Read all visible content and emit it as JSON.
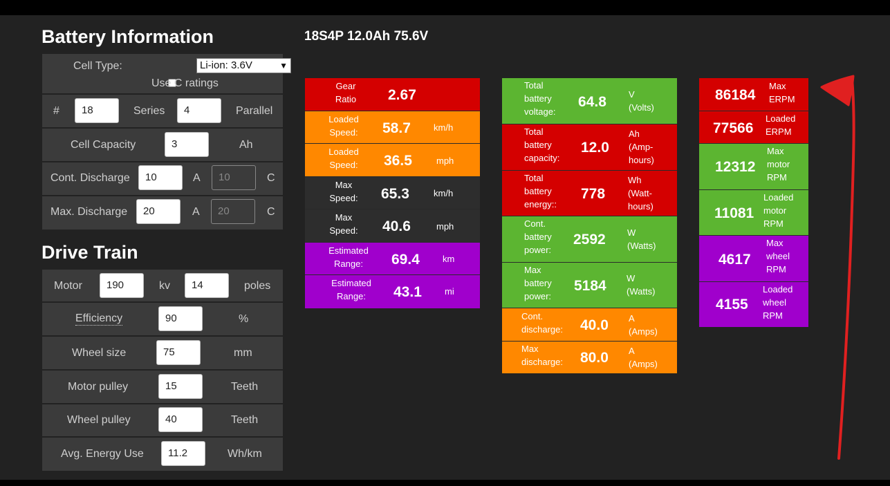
{
  "battery": {
    "title": "Battery Information",
    "cell_type_label": "Cell Type:",
    "cell_type_value": "Li-ion: 3.6V",
    "use_c_label": "Use C ratings",
    "hash_label": "#",
    "series_value": "18",
    "series_label": "Series",
    "parallel_value": "4",
    "parallel_label": "Parallel",
    "capacity_label": "Cell Capacity",
    "capacity_value": "3",
    "capacity_unit": "Ah",
    "cont_label": "Cont. Discharge",
    "cont_value": "10",
    "cont_unit": "A",
    "cont_c_value": "10",
    "cont_c_unit": "C",
    "max_label": "Max. Discharge",
    "max_value": "20",
    "max_unit": "A",
    "max_c_value": "20",
    "max_c_unit": "C"
  },
  "drive": {
    "title": "Drive Train",
    "motor_label": "Motor",
    "kv_value": "190",
    "kv_unit": "kv",
    "poles_value": "14",
    "poles_unit": "poles",
    "eff_label": "Efficiency",
    "eff_value": "90",
    "eff_unit": "%",
    "wheel_label": "Wheel size",
    "wheel_value": "75",
    "wheel_unit": "mm",
    "mpulley_label": "Motor pulley",
    "mpulley_value": "15",
    "mpulley_unit": "Teeth",
    "wpulley_label": "Wheel pulley",
    "wpulley_value": "40",
    "wpulley_unit": "Teeth",
    "energy_label": "Avg. Energy Use",
    "energy_value": "11.2",
    "energy_unit": "Wh/km"
  },
  "summary": "18S4P 12.0Ah 75.6V",
  "speed_col": [
    {
      "label1": "Gear",
      "label2": "Ratio",
      "value": "2.67",
      "unit": "",
      "color": "red"
    },
    {
      "label1": "Loaded",
      "label2": "Speed:",
      "value": "58.7",
      "unit": "km/h",
      "color": "orange"
    },
    {
      "label1": "Loaded",
      "label2": "Speed:",
      "value": "36.5",
      "unit": "mph",
      "color": "orange"
    },
    {
      "label1": "Max",
      "label2": "Speed:",
      "value": "65.3",
      "unit": "km/h",
      "color": "dark"
    },
    {
      "label1": "Max",
      "label2": "Speed:",
      "value": "40.6",
      "unit": "mph",
      "color": "dark"
    },
    {
      "label1": "Estimated",
      "label2": "Range:",
      "value": "69.4",
      "unit": "km",
      "color": "purple"
    },
    {
      "label1": "Estimated",
      "label2": "Range:",
      "value": "43.1",
      "unit": "mi",
      "color": "purple"
    }
  ],
  "battery_col": [
    {
      "label": [
        "Total",
        "battery",
        "voltage:"
      ],
      "value": "64.8",
      "unit": [
        "V",
        "(Volts)"
      ],
      "color": "green"
    },
    {
      "label": [
        "Total",
        "battery",
        "capacity:"
      ],
      "value": "12.0",
      "unit": [
        "Ah",
        "(Amp-",
        "hours)"
      ],
      "color": "red"
    },
    {
      "label": [
        "Total",
        "battery",
        "energy::"
      ],
      "value": "778",
      "unit": [
        "Wh",
        "(Watt-",
        "hours)"
      ],
      "color": "red"
    },
    {
      "label": [
        "Cont.",
        "battery",
        "power:"
      ],
      "value": "2592",
      "unit": [
        "W",
        "(Watts)"
      ],
      "color": "green"
    },
    {
      "label": [
        "Max",
        "battery",
        "power:"
      ],
      "value": "5184",
      "unit": [
        "W",
        "(Watts)"
      ],
      "color": "green"
    },
    {
      "label": [
        "Cont.",
        "discharge:"
      ],
      "value": "40.0",
      "unit": [
        "A",
        "(Amps)"
      ],
      "color": "orange"
    },
    {
      "label": [
        "Max",
        "discharge:"
      ],
      "value": "80.0",
      "unit": [
        "A",
        "(Amps)"
      ],
      "color": "orange"
    }
  ],
  "rpm_col": [
    {
      "value": "86184",
      "label": [
        "Max",
        "ERPM"
      ],
      "color": "red"
    },
    {
      "value": "77566",
      "label": [
        "Loaded",
        "ERPM"
      ],
      "color": "red"
    },
    {
      "value": "12312",
      "label": [
        "Max",
        "motor",
        "RPM"
      ],
      "color": "green"
    },
    {
      "value": "11081",
      "label": [
        "Loaded",
        "motor",
        "RPM"
      ],
      "color": "green"
    },
    {
      "value": "4617",
      "label": [
        "Max",
        "wheel",
        "RPM"
      ],
      "color": "purple"
    },
    {
      "value": "4155",
      "label": [
        "Loaded",
        "wheel",
        "RPM"
      ],
      "color": "purple"
    }
  ],
  "annotation_color": "#e02020"
}
